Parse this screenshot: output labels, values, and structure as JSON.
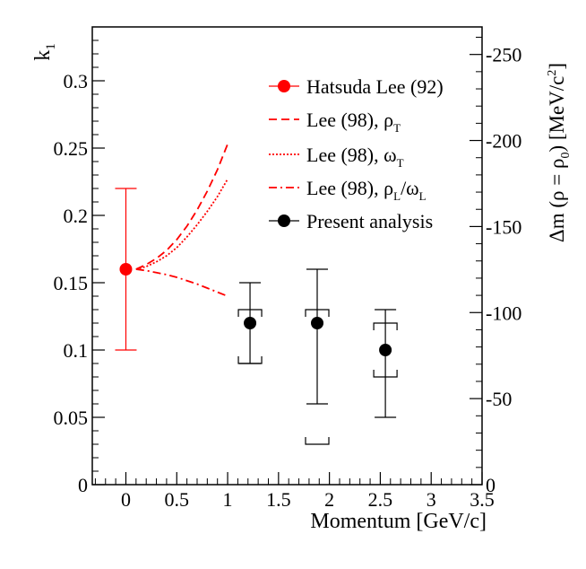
{
  "chart_data": {
    "type": "scatter",
    "xlabel": "Momentum [GeV/c]",
    "ylabel": "k",
    "ylabel_sub": "1",
    "y2label_parts": [
      "Δm (ρ = ρ",
      "0",
      ") [MeV/c",
      "2",
      "]"
    ],
    "xlim": [
      -0.33,
      3.5
    ],
    "ylim": [
      0,
      0.34
    ],
    "y2lim": [
      0,
      -266
    ],
    "x_ticks": [
      0,
      0.5,
      1,
      1.5,
      2,
      2.5,
      3,
      3.5
    ],
    "x_tick_labels": [
      "0",
      "0.5",
      "1",
      "1.5",
      "2",
      "2.5",
      "3",
      "3.5"
    ],
    "y_ticks": [
      0,
      0.05,
      0.1,
      0.15,
      0.2,
      0.25,
      0.3
    ],
    "y_tick_labels": [
      "0",
      "0.05",
      "0.1",
      "0.15",
      "0.2",
      "0.25",
      "0.3"
    ],
    "y2_ticks": [
      0,
      -50,
      -100,
      -150,
      -200,
      -250
    ],
    "y2_tick_labels": [
      "0",
      "-50",
      "-100",
      "-150",
      "-200",
      "-250"
    ],
    "colors": {
      "red": "#ff0000",
      "black": "#000000"
    },
    "series": [
      {
        "name": "Hatsuda Lee (92)",
        "kind": "point",
        "color": "#ff0000",
        "points": [
          {
            "x": 0,
            "y": 0.16,
            "ylow": 0.1,
            "yhigh": 0.22
          }
        ]
      },
      {
        "name": "Lee (98), ρT",
        "label_main": "Lee (98), ρ",
        "label_sub": "T",
        "kind": "line",
        "dash": "dashed",
        "color": "#ff0000",
        "x": [
          0.1,
          0.2,
          0.3,
          0.4,
          0.5,
          0.6,
          0.7,
          0.8,
          0.9,
          1.0
        ],
        "y": [
          0.16,
          0.1635,
          0.168,
          0.174,
          0.182,
          0.192,
          0.204,
          0.218,
          0.234,
          0.253
        ]
      },
      {
        "name": "Lee (98), ωT",
        "label_main": "Lee (98), ω",
        "label_sub": "T",
        "kind": "line",
        "dash": "dotted",
        "color": "#ff0000",
        "x": [
          0.1,
          0.2,
          0.3,
          0.4,
          0.5,
          0.6,
          0.7,
          0.8,
          0.9,
          1.0
        ],
        "y": [
          0.16,
          0.162,
          0.1655,
          0.17,
          0.176,
          0.184,
          0.193,
          0.203,
          0.214,
          0.227
        ]
      },
      {
        "name": "Lee (98), ρL/ωL",
        "label_main": "Lee (98), ρ",
        "label_sub": "L",
        "label_mid": "/ω",
        "label_sub2": "L",
        "kind": "line",
        "dash": "dashdot",
        "color": "#ff0000",
        "x": [
          0.1,
          0.2,
          0.3,
          0.4,
          0.5,
          0.6,
          0.7,
          0.8,
          0.9,
          1.0
        ],
        "y": [
          0.16,
          0.159,
          0.1575,
          0.156,
          0.154,
          0.1515,
          0.149,
          0.146,
          0.143,
          0.14
        ]
      },
      {
        "name": "Present analysis",
        "kind": "point",
        "color": "#000000",
        "points": [
          {
            "x": 1.22,
            "y": 0.12,
            "ylow": 0.09,
            "yhigh": 0.15,
            "syslow": 0.09,
            "syshigh": 0.13
          },
          {
            "x": 1.88,
            "y": 0.12,
            "ylow": 0.06,
            "yhigh": 0.16,
            "syslow": 0.03,
            "syshigh": 0.13
          },
          {
            "x": 2.55,
            "y": 0.1,
            "ylow": 0.05,
            "yhigh": 0.13,
            "syslow": 0.08,
            "syshigh": 0.12
          }
        ]
      }
    ],
    "legend_position": "top-right"
  }
}
